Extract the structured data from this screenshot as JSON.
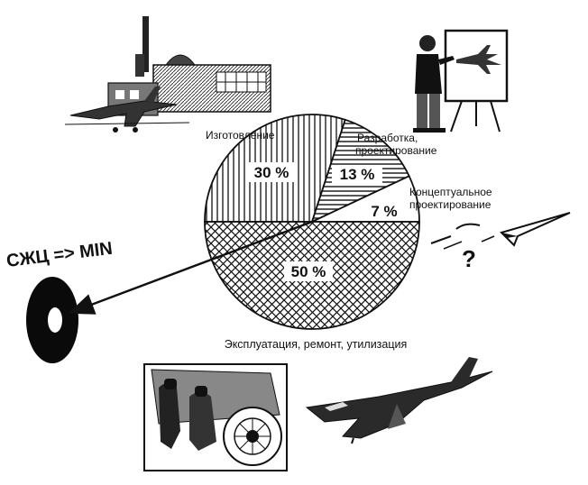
{
  "chart_data": {
    "type": "pie",
    "categories": [
      "Изготовление",
      "Разработка, проектирование",
      "Концептуальное проектирование",
      "Эксплуатация, ремонт, утилизация"
    ],
    "values": [
      30,
      13,
      7,
      50
    ],
    "value_labels": [
      "30 %",
      "13 %",
      "7 %",
      "50 %"
    ],
    "label_lines": [
      [
        "Изготовление"
      ],
      [
        "Разработка,",
        "проектирование"
      ],
      [
        "Концептуальное",
        "проектирование"
      ],
      [
        "Эксплуатация, ремонт, утилизация"
      ]
    ],
    "title": "",
    "legend": "none"
  },
  "annotation": {
    "lcc_text": "СЖЦ => MIN",
    "question_mark": "?"
  },
  "illustrations": [
    "factory-with-aircraft",
    "engineer-at-drawing-board",
    "paper-airplane-concept",
    "target-ring",
    "engine-maintenance",
    "fighter-jet"
  ],
  "colors": {
    "ink": "#111111",
    "paper": "#ffffff"
  }
}
